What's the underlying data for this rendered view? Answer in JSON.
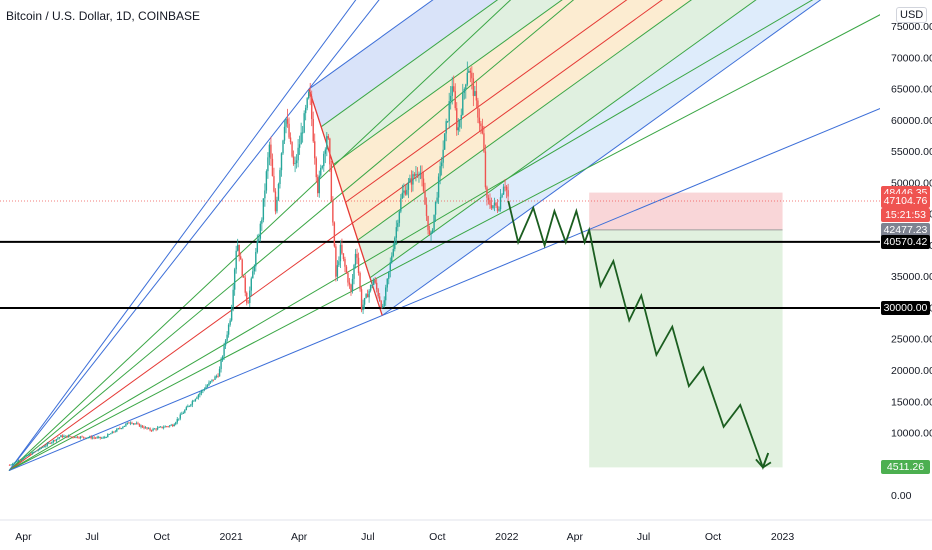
{
  "header": {
    "title": "Bitcoin / U.S. Dollar, 1D, COINBASE",
    "currency": "USD"
  },
  "chart_data": {
    "type": "candlestick",
    "title": "Bitcoin / U.S. Dollar, 1D, COINBASE",
    "yaxis": {
      "ticks": [
        "0.00",
        "5000.00",
        "10000.00",
        "15000.00",
        "20000.00",
        "25000.00",
        "30000.00",
        "35000.00",
        "40000.00",
        "45000.00",
        "50000.00",
        "55000.00",
        "60000.00",
        "65000.00",
        "70000.00",
        "75000.00"
      ],
      "ylim": [
        -1500,
        77000
      ]
    },
    "xaxis": {
      "ticks": [
        "Apr",
        "Jul",
        "Oct",
        "2021",
        "Apr",
        "Jul",
        "Oct",
        "2022",
        "Apr",
        "Jul",
        "Oct",
        "2023"
      ],
      "tick_dates": [
        "2020-04-01",
        "2020-07-01",
        "2020-10-01",
        "2021-01-01",
        "2021-04-01",
        "2021-07-01",
        "2021-10-01",
        "2022-01-01",
        "2022-04-01",
        "2022-07-01",
        "2022-10-01",
        "2023-01-01"
      ],
      "xlim": [
        "2020-03-01",
        "2023-05-10"
      ]
    },
    "price_path": [
      [
        "2020-03-13",
        4900
      ],
      [
        "2020-04-15",
        7000
      ],
      [
        "2020-05-20",
        9500
      ],
      [
        "2020-07-15",
        9200
      ],
      [
        "2020-08-20",
        11800
      ],
      [
        "2020-09-15",
        10500
      ],
      [
        "2020-10-15",
        11300
      ],
      [
        "2020-11-15",
        15800
      ],
      [
        "2020-12-15",
        19500
      ],
      [
        "2020-12-31",
        29000
      ],
      [
        "2021-01-08",
        41000
      ],
      [
        "2021-01-22",
        30500
      ],
      [
        "2021-02-10",
        44500
      ],
      [
        "2021-02-20",
        56000
      ],
      [
        "2021-02-28",
        45500
      ],
      [
        "2021-03-13",
        61000
      ],
      [
        "2021-03-25",
        52000
      ],
      [
        "2021-04-14",
        64500
      ],
      [
        "2021-04-25",
        49000
      ],
      [
        "2021-05-08",
        58500
      ],
      [
        "2021-05-19",
        35000
      ],
      [
        "2021-05-25",
        39500
      ],
      [
        "2021-06-08",
        32500
      ],
      [
        "2021-06-15",
        40000
      ],
      [
        "2021-06-22",
        30000
      ],
      [
        "2021-07-08",
        34500
      ],
      [
        "2021-07-20",
        29800
      ],
      [
        "2021-08-14",
        48000
      ],
      [
        "2021-09-07",
        52500
      ],
      [
        "2021-09-21",
        40500
      ],
      [
        "2021-10-20",
        66000
      ],
      [
        "2021-10-27",
        58000
      ],
      [
        "2021-11-10",
        69000
      ],
      [
        "2021-11-30",
        57000
      ],
      [
        "2021-12-04",
        47000
      ],
      [
        "2021-12-20",
        46000
      ],
      [
        "2021-12-28",
        50500
      ],
      [
        "2022-01-03",
        47104.76
      ]
    ],
    "projected_path": [
      [
        "2022-01-03",
        47104.76
      ],
      [
        "2022-01-16",
        40500
      ],
      [
        "2022-02-05",
        46000
      ],
      [
        "2022-02-20",
        40000
      ],
      [
        "2022-03-05",
        45500
      ],
      [
        "2022-03-20",
        40500
      ],
      [
        "2022-04-03",
        45500
      ],
      [
        "2022-04-14",
        40500
      ],
      [
        "2022-04-20",
        42477.23
      ],
      [
        "2022-05-05",
        33500
      ],
      [
        "2022-05-22",
        37500
      ],
      [
        "2022-06-12",
        28000
      ],
      [
        "2022-06-28",
        32000
      ],
      [
        "2022-07-18",
        22500
      ],
      [
        "2022-08-08",
        27000
      ],
      [
        "2022-08-30",
        17500
      ],
      [
        "2022-09-18",
        20500
      ],
      [
        "2022-10-15",
        11000
      ],
      [
        "2022-11-06",
        14500
      ],
      [
        "2022-12-06",
        4511.26
      ],
      [
        "2022-12-13",
        6800
      ]
    ],
    "short_position": {
      "start": "2022-04-20",
      "end": "2023-01-01",
      "entry": 42477.23,
      "stop": 48446.35,
      "target": 4511.26
    },
    "horizontal_levels": [
      40570.42,
      30000
    ],
    "current_price": 47104.76,
    "countdown": "15:21:53",
    "price_labels": [
      {
        "text": "48446.35",
        "kind": "stop"
      },
      {
        "text": "47104.76",
        "kind": "current"
      },
      {
        "text": "15:21:53",
        "kind": "current"
      },
      {
        "text": "42477.23",
        "kind": "entry"
      },
      {
        "text": "40570.42",
        "kind": "level"
      },
      {
        "text": "30000.00",
        "kind": "level"
      },
      {
        "text": "4511.26",
        "kind": "target"
      }
    ],
    "colors": {
      "up": "#26a69a",
      "down": "#ef5350",
      "projection": "#1b5e20",
      "stop_zone": "#f8cfd1",
      "target_zone": "#dcefd9",
      "fan_blue": "#3d6fd8",
      "fan_green": "#3aa645",
      "fan_red": "#e53935",
      "level": "#000000",
      "current_line": "#ef5350"
    }
  }
}
